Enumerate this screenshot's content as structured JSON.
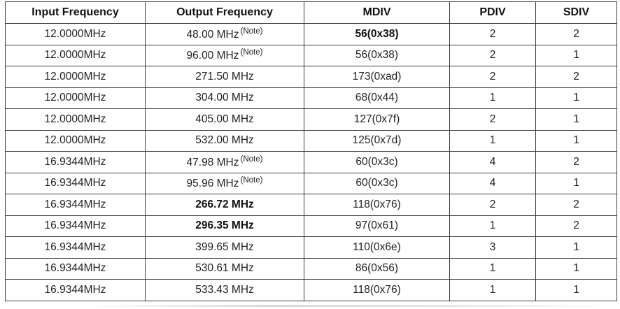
{
  "headers": {
    "input": "Input Frequency",
    "output": "Output Frequency",
    "mdiv": "MDIV",
    "pdiv": "PDIV",
    "sdiv": "SDIV"
  },
  "note_label": "(Note)",
  "rows": [
    {
      "input": "12.0000MHz",
      "output": "48.00 MHz",
      "note": true,
      "output_bold": false,
      "mdiv": "56(0x38)",
      "mdiv_bold": true,
      "pdiv": "2",
      "sdiv": "2"
    },
    {
      "input": "12.0000MHz",
      "output": "96.00 MHz",
      "note": true,
      "output_bold": false,
      "mdiv": "56(0x38)",
      "mdiv_bold": false,
      "pdiv": "2",
      "sdiv": "1"
    },
    {
      "input": "12.0000MHz",
      "output": "271.50 MHz",
      "note": false,
      "output_bold": false,
      "mdiv": "173(0xad)",
      "mdiv_bold": false,
      "pdiv": "2",
      "sdiv": "2"
    },
    {
      "input": "12.0000MHz",
      "output": "304.00 MHz",
      "note": false,
      "output_bold": false,
      "mdiv": "68(0x44)",
      "mdiv_bold": false,
      "pdiv": "1",
      "sdiv": "1"
    },
    {
      "input": "12.0000MHz",
      "output": "405.00 MHz",
      "note": false,
      "output_bold": false,
      "mdiv": "127(0x7f)",
      "mdiv_bold": false,
      "pdiv": "2",
      "sdiv": "1"
    },
    {
      "input": "12.0000MHz",
      "output": "532.00 MHz",
      "note": false,
      "output_bold": false,
      "mdiv": "125(0x7d)",
      "mdiv_bold": false,
      "pdiv": "1",
      "sdiv": "1"
    },
    {
      "input": "16.9344MHz",
      "output": "47.98 MHz",
      "note": true,
      "output_bold": false,
      "mdiv": "60(0x3c)",
      "mdiv_bold": false,
      "pdiv": "4",
      "sdiv": "2"
    },
    {
      "input": "16.9344MHz",
      "output": "95.96 MHz",
      "note": true,
      "output_bold": false,
      "mdiv": "60(0x3c)",
      "mdiv_bold": false,
      "pdiv": "4",
      "sdiv": "1"
    },
    {
      "input": "16.9344MHz",
      "output": "266.72 MHz",
      "note": false,
      "output_bold": true,
      "mdiv": "118(0x76)",
      "mdiv_bold": false,
      "pdiv": "2",
      "sdiv": "2"
    },
    {
      "input": "16.9344MHz",
      "output": "296.35 MHz",
      "note": false,
      "output_bold": true,
      "mdiv": "97(0x61)",
      "mdiv_bold": false,
      "pdiv": "1",
      "sdiv": "2"
    },
    {
      "input": "16.9344MHz",
      "output": "399.65 MHz",
      "note": false,
      "output_bold": false,
      "mdiv": "110(0x6e)",
      "mdiv_bold": false,
      "pdiv": "3",
      "sdiv": "1"
    },
    {
      "input": "16.9344MHz",
      "output": "530.61 MHz",
      "note": false,
      "output_bold": false,
      "mdiv": "86(0x56)",
      "mdiv_bold": false,
      "pdiv": "1",
      "sdiv": "1"
    },
    {
      "input": "16.9344MHz",
      "output": "533.43 MHz",
      "note": false,
      "output_bold": false,
      "mdiv": "118(0x76)",
      "mdiv_bold": false,
      "pdiv": "1",
      "sdiv": "1"
    }
  ]
}
